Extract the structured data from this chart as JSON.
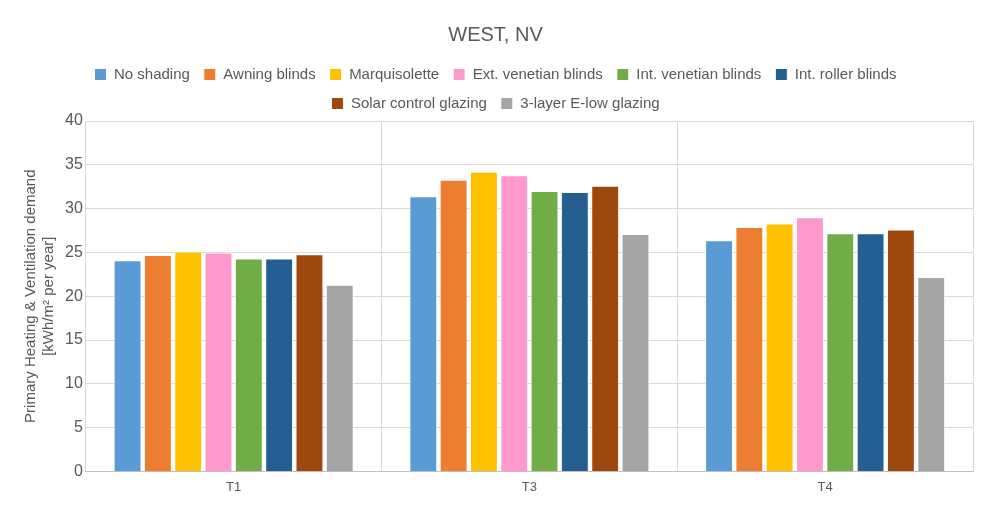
{
  "chart_data": {
    "type": "bar",
    "title": "WEST, NV",
    "ylabel": "Primary Heating & Ventilation demand\n[kWh/m² per year]",
    "categories": [
      "T1",
      "T3",
      "T4"
    ],
    "series": [
      {
        "name": "No shading",
        "color": "#5b9bd5",
        "values": [
          24.1,
          31.4,
          26.4
        ]
      },
      {
        "name": "Awning blinds",
        "color": "#ed7d31",
        "values": [
          24.7,
          33.3,
          27.9
        ]
      },
      {
        "name": "Marquisolette",
        "color": "#ffc000",
        "values": [
          25.1,
          34.2,
          28.3
        ]
      },
      {
        "name": "Ext. venetian blinds",
        "color": "#ff99cc",
        "values": [
          25.0,
          33.8,
          29.0
        ]
      },
      {
        "name": "Int. venetian blinds",
        "color": "#70ad47",
        "values": [
          24.3,
          32.0,
          27.2
        ]
      },
      {
        "name": "Int. roller blinds",
        "color": "#255e91",
        "values": [
          24.3,
          31.9,
          27.2
        ]
      },
      {
        "name": "Solar control glazing",
        "color": "#9e480e",
        "values": [
          24.8,
          32.6,
          27.6
        ]
      },
      {
        "name": "3-layer E-low glazing",
        "color": "#a5a5a5",
        "values": [
          21.3,
          27.1,
          22.2
        ]
      }
    ],
    "ylim": [
      0,
      40
    ],
    "yticks": [
      0,
      5,
      10,
      15,
      20,
      25,
      30,
      35,
      40
    ],
    "grid": true,
    "legend": "top"
  }
}
